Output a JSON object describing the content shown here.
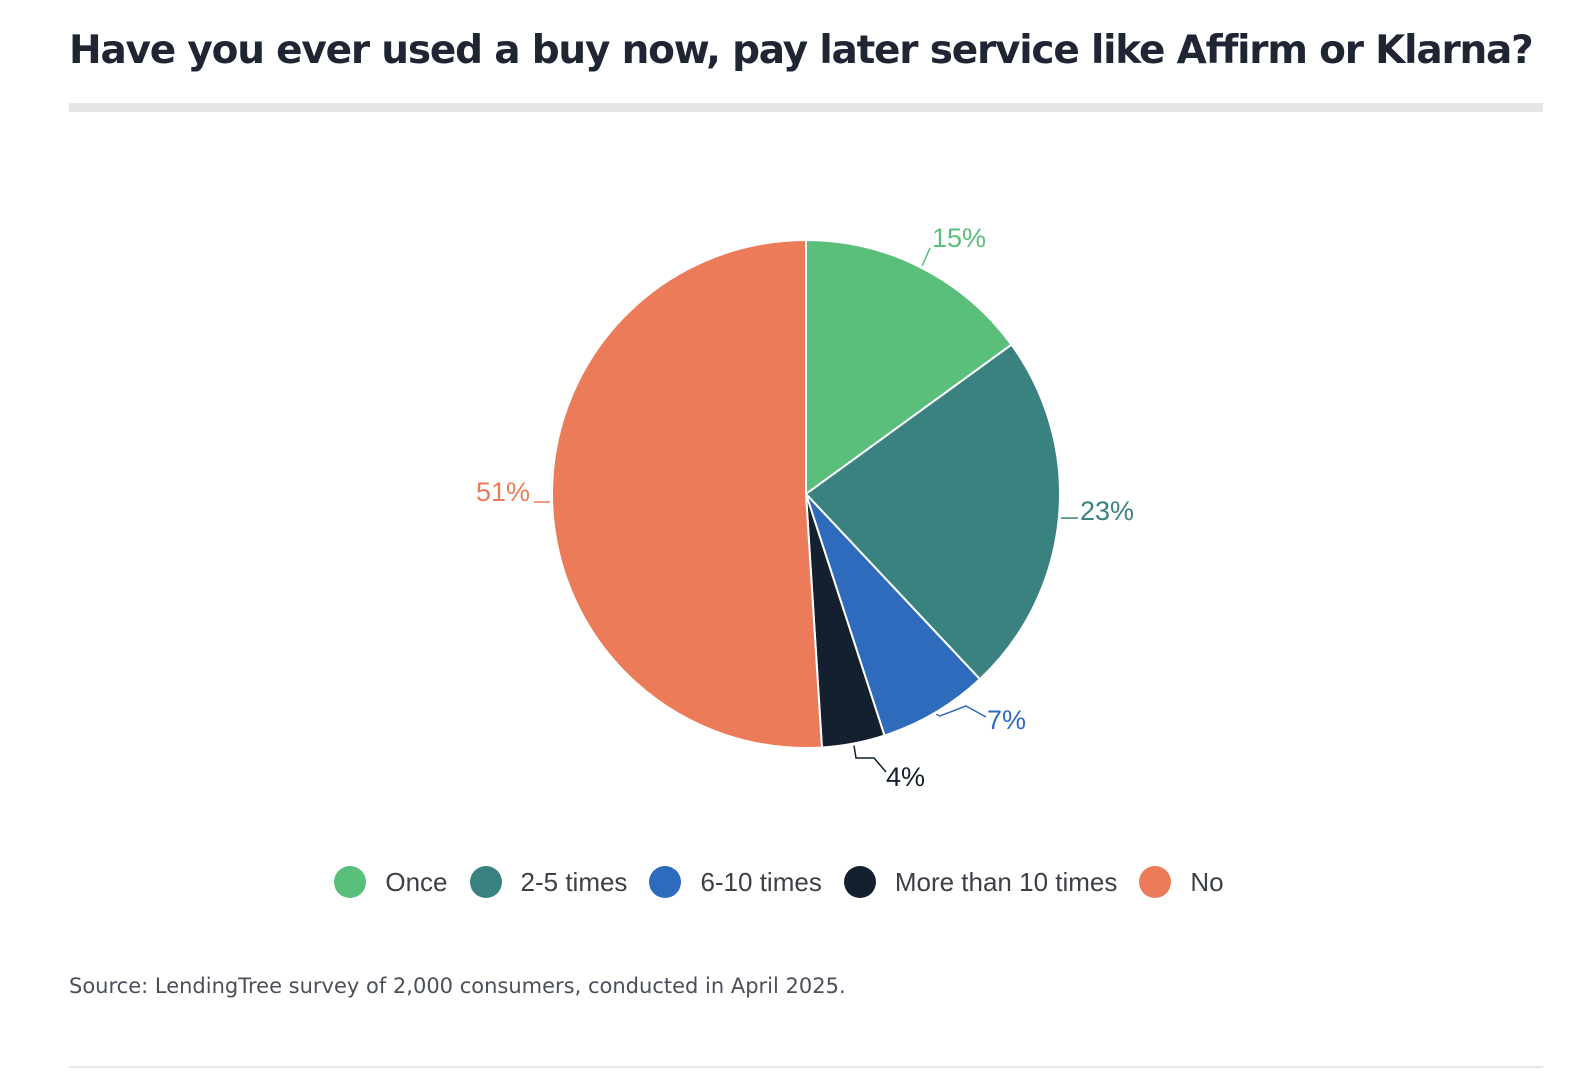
{
  "title": "Have you ever used a buy now, pay later service like Affirm or Klarna?",
  "source": "Source: LendingTree survey of 2,000 consumers, conducted in April 2025.",
  "chart_data": {
    "type": "pie",
    "title": "Have you ever used a buy now, pay later service like Affirm or Klarna?",
    "categories": [
      "Once",
      "2-5 times",
      "6-10 times",
      "More than 10 times",
      "No"
    ],
    "values": [
      15,
      23,
      7,
      4,
      51
    ],
    "data_labels": [
      "15%",
      "23%",
      "7%",
      "4%",
      "51%"
    ],
    "colors": [
      "#5abf7b",
      "#3a8280",
      "#2f6bbd",
      "#142030",
      "#ec7b59"
    ],
    "label_colors": [
      "#5abf7b",
      "#3a8280",
      "#2f6bbd",
      "#142030",
      "#ec7b59"
    ],
    "start": "12 o'clock",
    "direction": "clockwise",
    "legend_position": "bottom-center"
  }
}
